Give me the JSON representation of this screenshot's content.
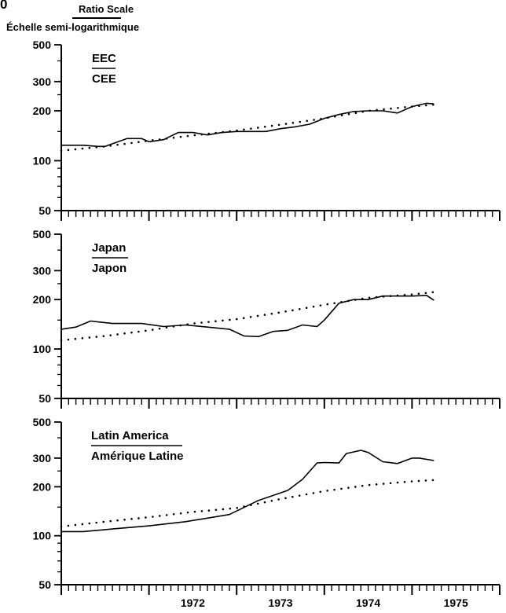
{
  "header": {
    "corner_mark": "0",
    "scale_label_en": "Ratio Scale",
    "scale_label_fr": "Échelle semi-logarithmique"
  },
  "colors": {
    "ink": "#000000",
    "background": "#ffffff"
  },
  "chart_data": [
    {
      "type": "line",
      "y_scale": "log",
      "ylim": [
        50,
        500
      ],
      "yticks": [
        50,
        100,
        200,
        300,
        500
      ],
      "xlim": [
        "1971-01",
        "1975-12"
      ],
      "x_tick_labels": [
        "1972",
        "1973",
        "1974",
        "1975"
      ],
      "x_minor_ticks": "monthly",
      "legend_en": "EEC",
      "legend_fr": "CEE",
      "series": [
        {
          "style": "solid",
          "x": [
            "1971-01",
            "1971-04",
            "1971-06",
            "1971-07",
            "1971-10",
            "1971-12",
            "1972-01",
            "1972-03",
            "1972-05",
            "1972-07",
            "1972-09",
            "1972-11",
            "1973-01",
            "1973-03",
            "1973-05",
            "1973-07",
            "1973-09",
            "1973-11",
            "1974-01",
            "1974-03",
            "1974-05",
            "1974-07",
            "1974-09",
            "1974-11",
            "1975-01",
            "1975-03",
            "1975-04"
          ],
          "values": [
            124,
            124,
            122,
            122,
            136,
            136,
            130,
            134,
            148,
            148,
            143,
            148,
            150,
            150,
            150,
            156,
            160,
            166,
            180,
            190,
            198,
            200,
            200,
            194,
            212,
            222,
            220
          ]
        },
        {
          "style": "dotted",
          "x": [
            "1971-01",
            "1971-07",
            "1972-01",
            "1972-07",
            "1973-01",
            "1973-07",
            "1974-01",
            "1974-07",
            "1975-01",
            "1975-04"
          ],
          "values": [
            115,
            122,
            132,
            142,
            152,
            165,
            180,
            200,
            212,
            218
          ]
        }
      ]
    },
    {
      "type": "line",
      "y_scale": "log",
      "ylim": [
        50,
        500
      ],
      "yticks": [
        50,
        100,
        200,
        300,
        500
      ],
      "xlim": [
        "1971-01",
        "1975-12"
      ],
      "x_tick_labels": [
        "1972",
        "1973",
        "1974",
        "1975"
      ],
      "x_minor_ticks": "monthly",
      "legend_en": "Japan",
      "legend_fr": "Japon",
      "series": [
        {
          "style": "solid",
          "x": [
            "1971-01",
            "1971-03",
            "1971-05",
            "1971-08",
            "1971-12",
            "1972-03",
            "1972-06",
            "1972-09",
            "1972-12",
            "1973-02",
            "1973-04",
            "1973-06",
            "1973-08",
            "1973-10",
            "1973-12",
            "1974-01",
            "1974-03",
            "1974-05",
            "1974-07",
            "1974-09",
            "1974-11",
            "1975-01",
            "1975-03",
            "1975-04"
          ],
          "values": [
            132,
            136,
            148,
            143,
            143,
            137,
            140,
            136,
            132,
            120,
            119,
            128,
            130,
            140,
            137,
            150,
            190,
            200,
            200,
            210,
            210,
            210,
            212,
            198
          ]
        },
        {
          "style": "dotted",
          "x": [
            "1971-01",
            "1971-07",
            "1972-01",
            "1972-07",
            "1973-01",
            "1973-07",
            "1974-01",
            "1974-07",
            "1975-01",
            "1975-04"
          ],
          "values": [
            113,
            120,
            130,
            143,
            152,
            167,
            186,
            205,
            215,
            222
          ]
        }
      ]
    },
    {
      "type": "line",
      "y_scale": "log",
      "ylim": [
        50,
        500
      ],
      "yticks": [
        50,
        100,
        200,
        300,
        500
      ],
      "xlim": [
        "1971-01",
        "1975-12"
      ],
      "x_tick_labels": [
        "1972",
        "1973",
        "1974",
        "1975"
      ],
      "x_minor_ticks": "monthly",
      "legend_en": "Latin America",
      "legend_fr": "Amérique Latine",
      "series": [
        {
          "style": "solid",
          "x": [
            "1971-01",
            "1971-04",
            "1971-08",
            "1972-01",
            "1972-06",
            "1972-12",
            "1973-04",
            "1973-08",
            "1973-10",
            "1973-12",
            "1974-01",
            "1974-03",
            "1974-04",
            "1974-06",
            "1974-07",
            "1974-09",
            "1974-11",
            "1975-01",
            "1975-02",
            "1975-04"
          ],
          "values": [
            106,
            106,
            110,
            115,
            122,
            135,
            165,
            190,
            222,
            280,
            282,
            280,
            320,
            335,
            325,
            285,
            278,
            300,
            300,
            290
          ]
        },
        {
          "style": "dotted",
          "x": [
            "1971-01",
            "1971-07",
            "1972-01",
            "1972-07",
            "1973-01",
            "1973-07",
            "1974-01",
            "1974-07",
            "1975-01",
            "1975-04"
          ],
          "values": [
            114,
            122,
            130,
            140,
            148,
            168,
            188,
            205,
            216,
            220
          ]
        }
      ]
    }
  ]
}
